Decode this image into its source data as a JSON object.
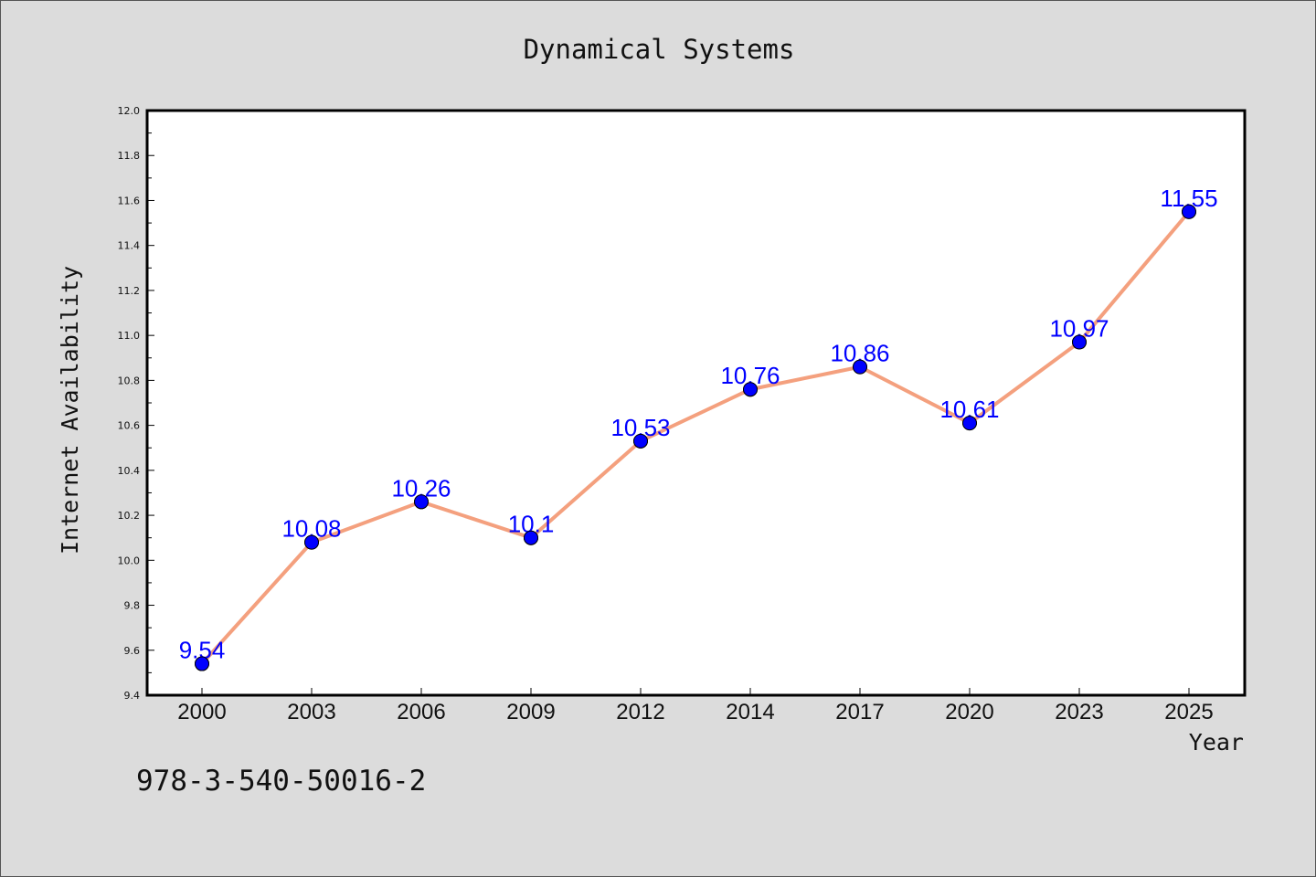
{
  "chart_data": {
    "type": "line",
    "title": "Dynamical Systems",
    "xlabel": "Year",
    "ylabel": "Internet Availability",
    "categories": [
      "2000",
      "2003",
      "2006",
      "2009",
      "2012",
      "2014",
      "2017",
      "2020",
      "2023",
      "2025"
    ],
    "values": [
      9.54,
      10.08,
      10.26,
      10.1,
      10.53,
      10.76,
      10.86,
      10.61,
      10.97,
      11.55
    ],
    "data_labels": [
      "9.54",
      "10.08",
      "10.26",
      "10.1",
      "10.53",
      "10.76",
      "10.86",
      "10.61",
      "10.97",
      "11.55"
    ],
    "ylim": [
      9.4,
      12.0
    ],
    "yticks": [
      "9.4",
      "9.6",
      "9.8",
      "10.0",
      "10.2",
      "10.4",
      "10.6",
      "10.8",
      "11.0",
      "11.2",
      "11.4",
      "11.6",
      "11.8",
      "12.0"
    ],
    "grid": false,
    "legend": "none",
    "colors": {
      "line": "#f4a07e",
      "marker": "#0000ff",
      "label": "#0000ff",
      "background": "#dcdcdc",
      "plot_background": "#ffffff"
    }
  },
  "footer": {
    "text": "978-3-540-50016-2"
  }
}
